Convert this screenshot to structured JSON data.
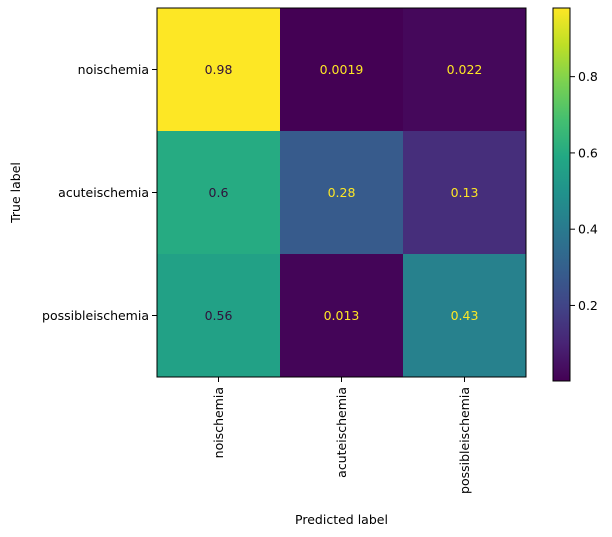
{
  "chart_data": {
    "type": "heatmap",
    "xlabel": "Predicted label",
    "ylabel": "True label",
    "x_categories": [
      "noischemia",
      "acuteischemia",
      "possibleischemia"
    ],
    "y_categories": [
      "noischemia",
      "acuteischemia",
      "possibleischemia"
    ],
    "values": [
      [
        0.98,
        0.0019,
        0.022
      ],
      [
        0.6,
        0.28,
        0.13
      ],
      [
        0.56,
        0.013,
        0.43
      ]
    ],
    "cell_labels": [
      [
        "0.98",
        "0.0019",
        "0.022"
      ],
      [
        "0.6",
        "0.28",
        "0.13"
      ],
      [
        "0.56",
        "0.013",
        "0.43"
      ]
    ],
    "colormap": "viridis",
    "colorbar": {
      "range": [
        0.0019,
        0.98
      ],
      "ticks": [
        0.2,
        0.4,
        0.6,
        0.8
      ],
      "tick_labels": [
        "0.2",
        "0.4",
        "0.6",
        "0.8"
      ]
    },
    "text_colors": {
      "dark": "#30123b",
      "light": "#fde725"
    }
  }
}
